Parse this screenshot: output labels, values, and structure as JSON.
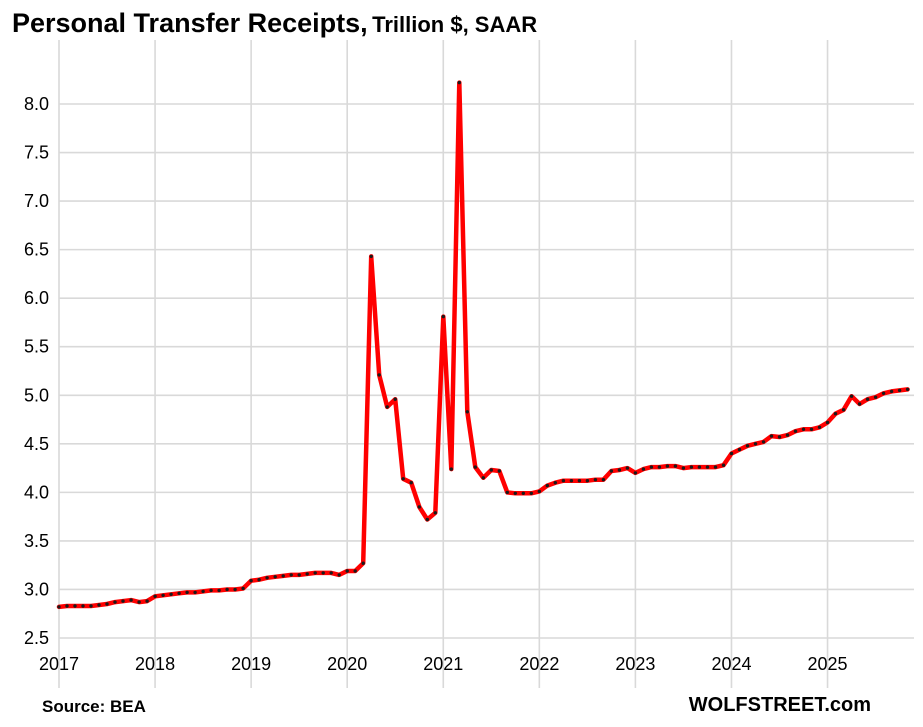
{
  "header": {
    "title": "Personal Transfer Receipts,",
    "subtitle": "Trillion $, SAAR"
  },
  "footer": {
    "source": "Source: BEA",
    "brand": "WOLFSTREET.com"
  },
  "colors": {
    "line": "#ff0000",
    "marker": "#1a1a1a",
    "grid": "#d9d9d9"
  },
  "chart_data": {
    "type": "line",
    "title": "Personal Transfer Receipts, Trillion $, SAAR",
    "xlabel": "",
    "ylabel": "",
    "x_start": "2017-01",
    "x_frequency": "monthly",
    "xlim": [
      2017,
      2025.9
    ],
    "ylim": [
      2.5,
      8.0
    ],
    "y_ticks": [
      "2.5",
      "3.0",
      "3.5",
      "4.0",
      "4.5",
      "5.0",
      "5.5",
      "6.0",
      "6.5",
      "7.0",
      "7.5",
      "8.0"
    ],
    "x_ticks": [
      "2017",
      "2018",
      "2019",
      "2020",
      "2021",
      "2022",
      "2023",
      "2024",
      "2025"
    ],
    "grid": true,
    "legend": "none",
    "series": [
      {
        "values": [
          2.82,
          2.83,
          2.83,
          2.83,
          2.83,
          2.84,
          2.85,
          2.87,
          2.88,
          2.89,
          2.87,
          2.88,
          2.93,
          2.94,
          2.95,
          2.96,
          2.97,
          2.97,
          2.98,
          2.99,
          2.99,
          3.0,
          3.0,
          3.01,
          3.09,
          3.1,
          3.12,
          3.13,
          3.14,
          3.15,
          3.15,
          3.16,
          3.17,
          3.17,
          3.17,
          3.15,
          3.19,
          3.19,
          3.27,
          6.43,
          5.21,
          4.88,
          4.96,
          4.14,
          4.1,
          3.85,
          3.72,
          3.79,
          5.81,
          4.24,
          8.22,
          4.83,
          4.26,
          4.15,
          4.23,
          4.22,
          4.0,
          3.99,
          3.99,
          3.99,
          4.01,
          4.07,
          4.1,
          4.12,
          4.12,
          4.12,
          4.12,
          4.13,
          4.13,
          4.22,
          4.23,
          4.25,
          4.2,
          4.24,
          4.26,
          4.26,
          4.27,
          4.27,
          4.25,
          4.26,
          4.26,
          4.26,
          4.26,
          4.28,
          4.4,
          4.44,
          4.48,
          4.5,
          4.52,
          4.58,
          4.57,
          4.59,
          4.63,
          4.65,
          4.65,
          4.67,
          4.72,
          4.81,
          4.85,
          4.99,
          4.91,
          4.96,
          4.98,
          5.02,
          5.04,
          5.05,
          5.06
        ]
      }
    ]
  }
}
